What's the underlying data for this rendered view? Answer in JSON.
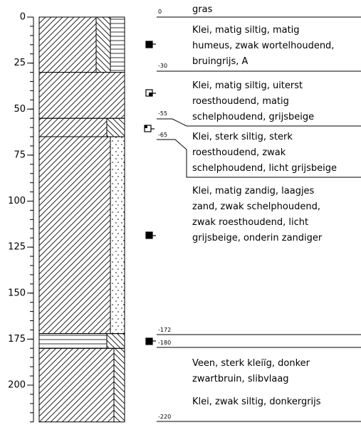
{
  "depth_axis": {
    "ticks": [
      0,
      25,
      50,
      75,
      100,
      125,
      150,
      175,
      200
    ]
  },
  "depth_labels": [
    "0",
    "-30",
    "-55",
    "-65",
    "-172",
    "-180",
    "-220"
  ],
  "descriptions": [
    [
      "gras"
    ],
    [
      "Klei, matig siltig, matig",
      "humeus, zwak wortelhoudend,",
      "bruingrijs, A"
    ],
    [
      "Klei, matig siltig, uiterst",
      "roesthoudend, matig",
      "schelphoudend, grijsbeige"
    ],
    [
      "Klei, sterk siltig, sterk",
      "roesthoudend, zwak",
      "schelphoudend, licht grijsbeige"
    ],
    [
      "Klei, matig zandig, laagjes",
      "zand, zwak schelphoudend,",
      "zwak roesthoudend, licht",
      "grijsbeige, onderin zandiger"
    ],
    [
      "Veen, sterk kleiïg, donker",
      "zwartbruin, slibvlaag"
    ],
    [
      "Klei, zwak siltig, donkergrijs"
    ]
  ]
}
